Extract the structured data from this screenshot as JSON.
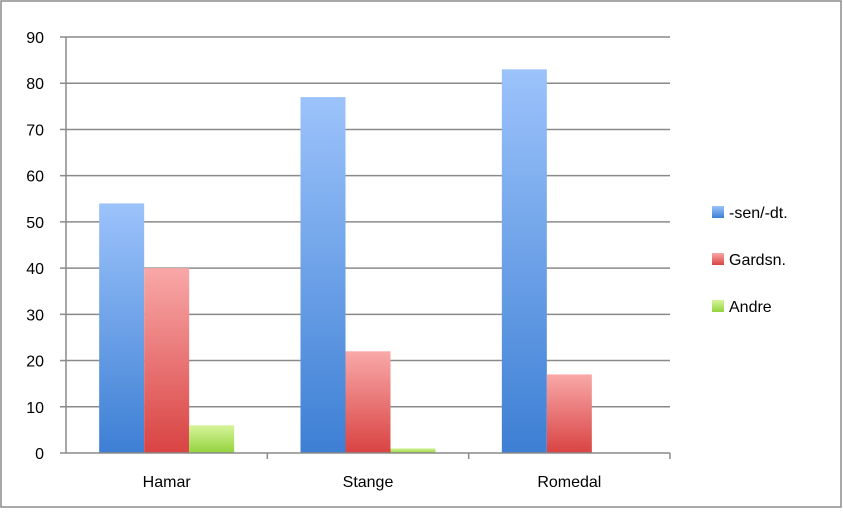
{
  "chart_data": {
    "type": "bar",
    "title": "",
    "xlabel": "",
    "ylabel": "",
    "categories": [
      "Hamar",
      "Stange",
      "Romedal"
    ],
    "series": [
      {
        "name": "-sen/-dt.",
        "values": [
          54,
          77,
          83
        ],
        "color_top": "#9cc3fb",
        "color_bottom": "#3d7fd4"
      },
      {
        "name": "Gardsn.",
        "values": [
          40,
          22,
          17
        ],
        "color_top": "#f9a8a8",
        "color_bottom": "#d94343"
      },
      {
        "name": "Andre",
        "values": [
          6,
          1,
          0
        ],
        "color_top": "#d7f49a",
        "color_bottom": "#93d33d"
      }
    ],
    "ylim": [
      0,
      90
    ],
    "yticks": [
      0,
      10,
      20,
      30,
      40,
      50,
      60,
      70,
      80,
      90
    ],
    "grid": true,
    "legend_position": "right"
  }
}
